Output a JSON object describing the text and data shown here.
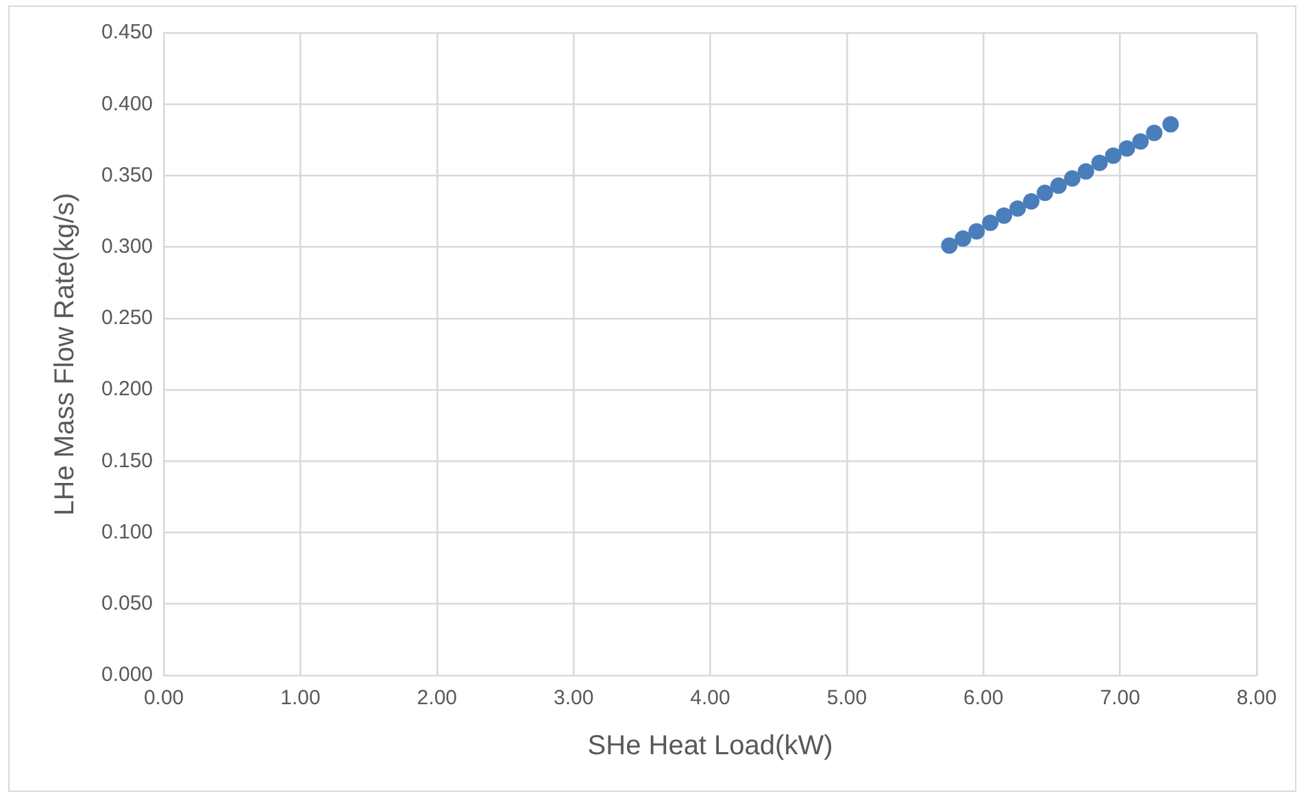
{
  "chart_data": {
    "type": "scatter",
    "xlabel": "SHe Heat Load(kW)",
    "ylabel": "LHe Mass Flow Rate(kg/s)",
    "x": [
      5.75,
      5.85,
      5.95,
      6.05,
      6.15,
      6.25,
      6.35,
      6.45,
      6.55,
      6.65,
      6.75,
      6.85,
      6.95,
      7.05,
      7.15,
      7.25,
      7.37
    ],
    "series": [
      {
        "color": "#4a7ebb",
        "values": [
          0.301,
          0.306,
          0.311,
          0.317,
          0.322,
          0.327,
          0.332,
          0.338,
          0.343,
          0.348,
          0.353,
          0.359,
          0.364,
          0.369,
          0.374,
          0.38,
          0.386
        ]
      }
    ],
    "xlim": [
      0,
      8
    ],
    "xticks": [
      {
        "value": 0,
        "label": "0.00"
      },
      {
        "value": 1,
        "label": "1.00"
      },
      {
        "value": 2,
        "label": "2.00"
      },
      {
        "value": 3,
        "label": "3.00"
      },
      {
        "value": 4,
        "label": "4.00"
      },
      {
        "value": 5,
        "label": "5.00"
      },
      {
        "value": 6,
        "label": "6.00"
      },
      {
        "value": 7,
        "label": "7.00"
      },
      {
        "value": 8,
        "label": "8.00"
      }
    ],
    "ylim": [
      0,
      0.45
    ],
    "yticks": [
      {
        "value": 0,
        "label": "0.000"
      },
      {
        "value": 0.05,
        "label": "0.050"
      },
      {
        "value": 0.1,
        "label": "0.100"
      },
      {
        "value": 0.15,
        "label": "0.150"
      },
      {
        "value": 0.2,
        "label": "0.200"
      },
      {
        "value": 0.25,
        "label": "0.250"
      },
      {
        "value": 0.3,
        "label": "0.300"
      },
      {
        "value": 0.35,
        "label": "0.350"
      },
      {
        "value": 0.4,
        "label": "0.400"
      },
      {
        "value": 0.45,
        "label": "0.450"
      }
    ],
    "grid": true,
    "legend": false,
    "marker": "circle"
  }
}
